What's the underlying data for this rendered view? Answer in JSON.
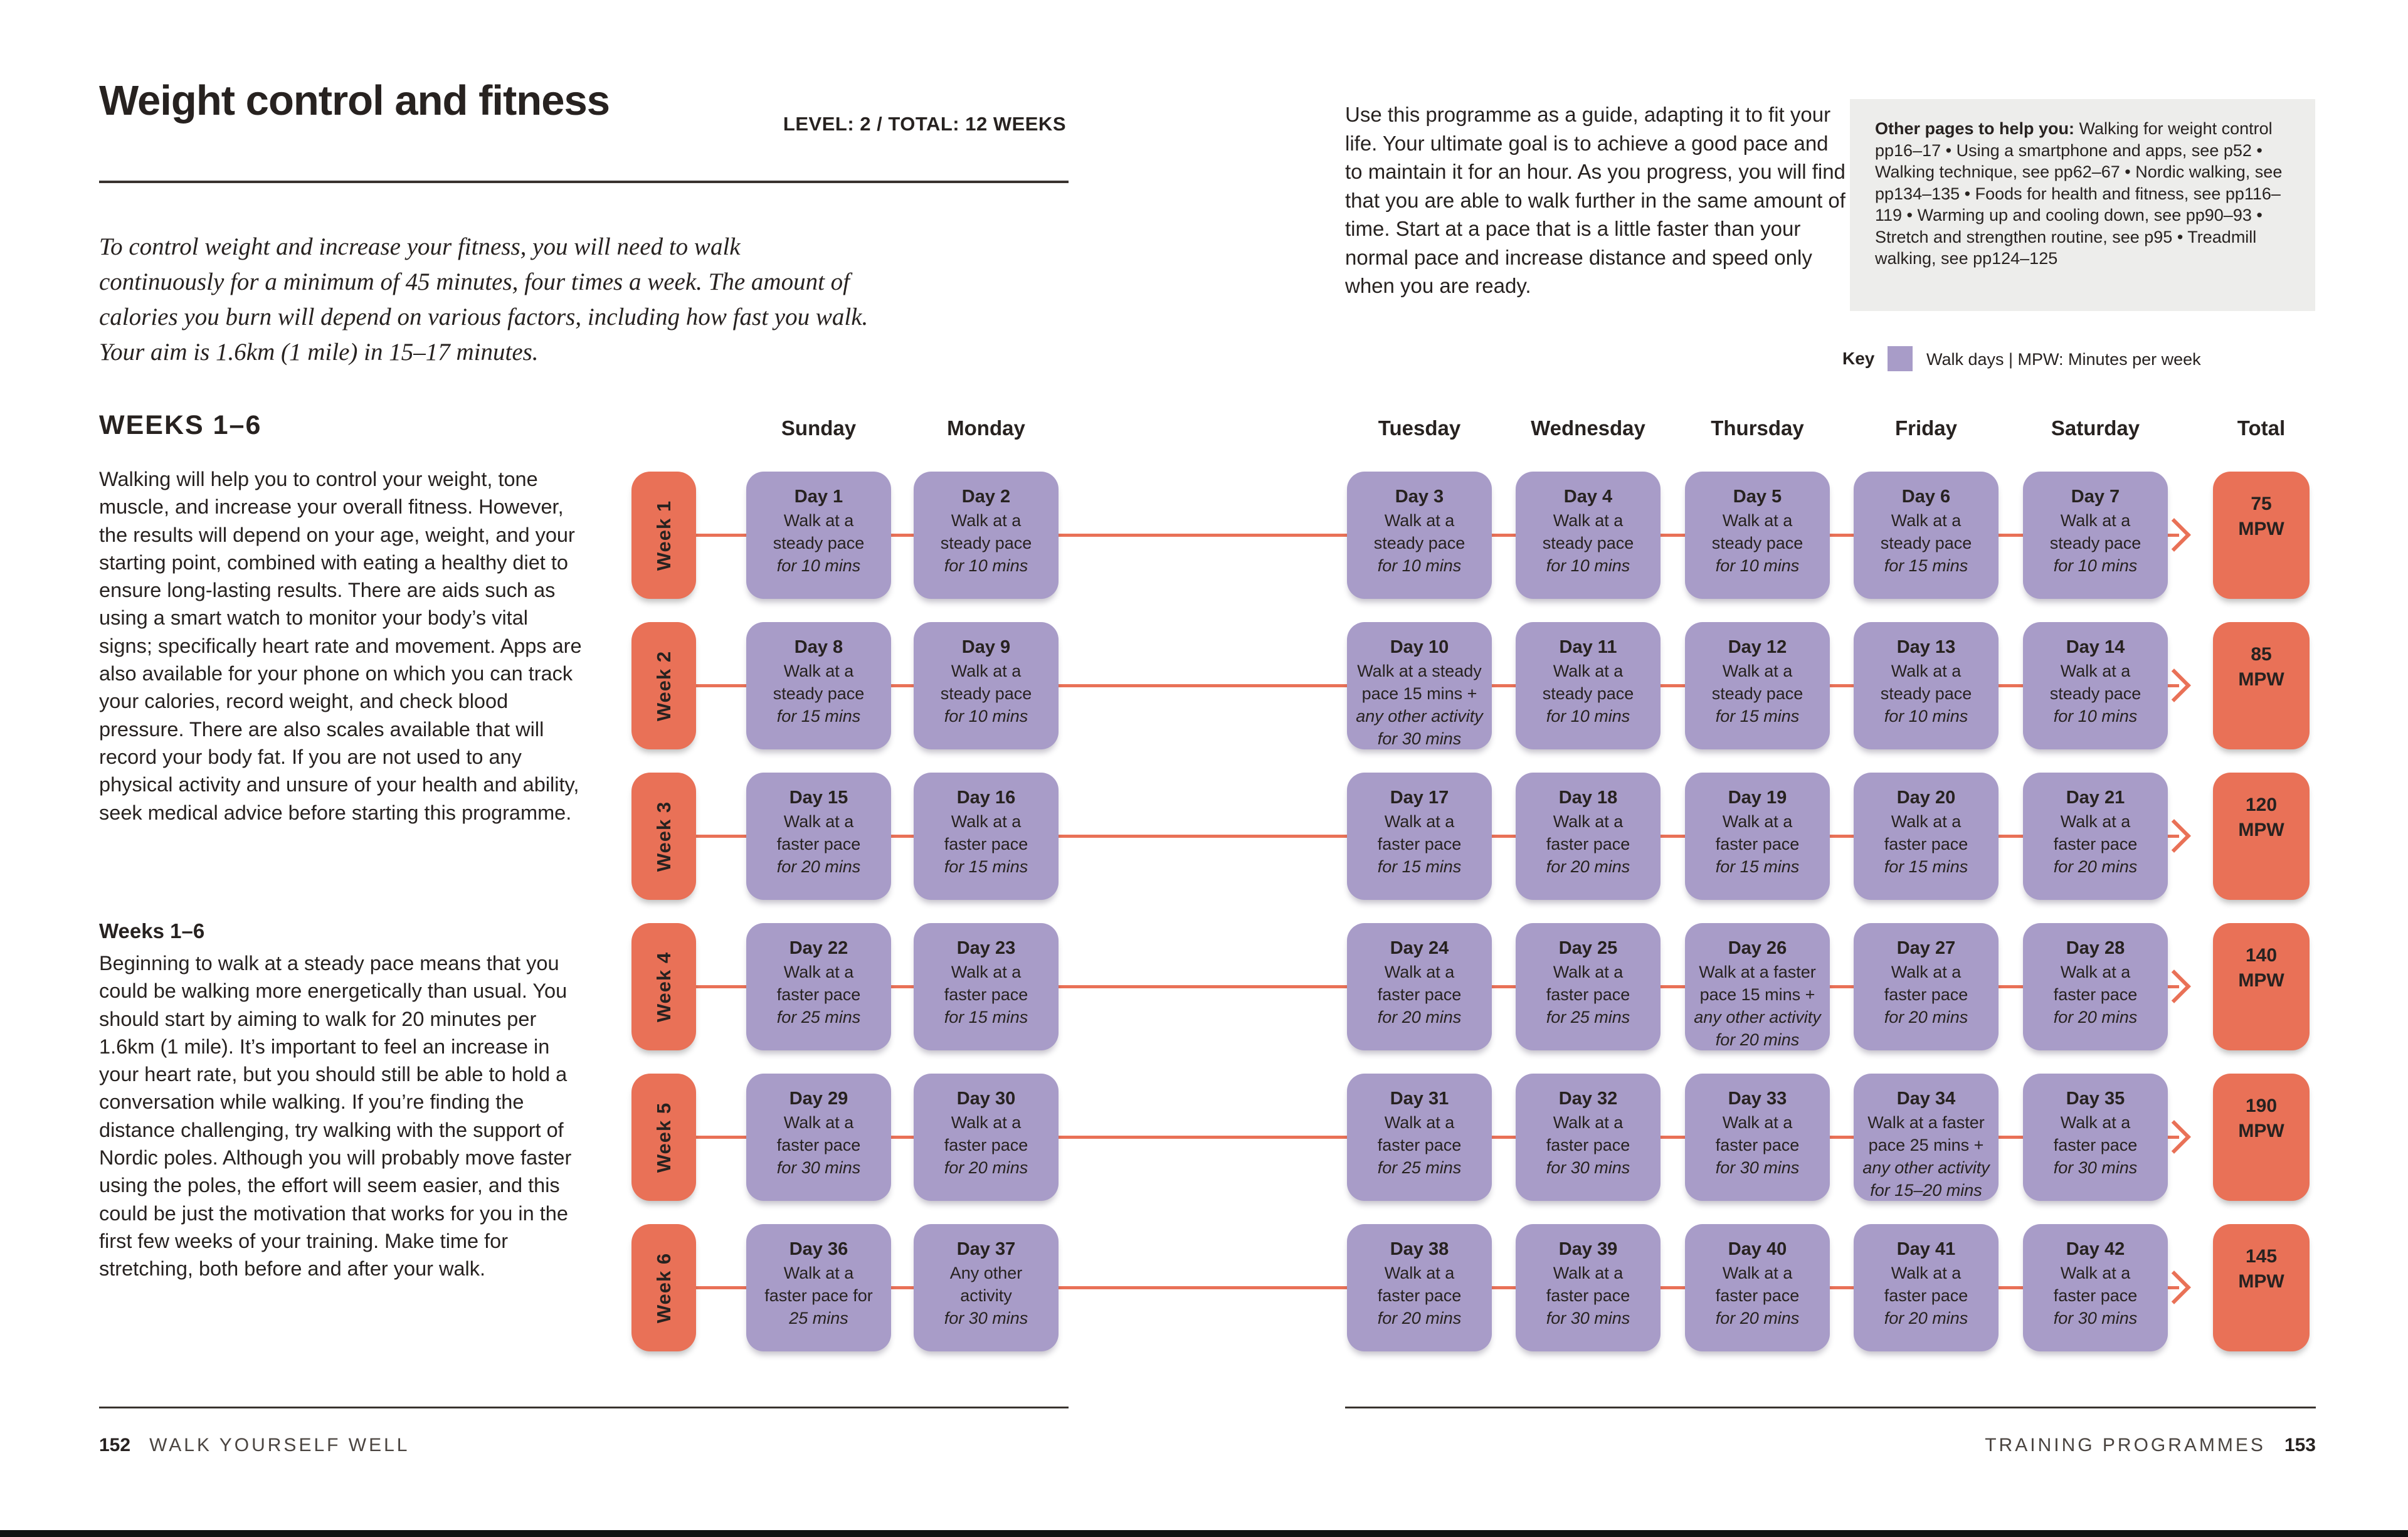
{
  "page": {
    "title": "Weight control and fitness",
    "meta": "LEVEL: 2  /  TOTAL: 12 WEEKS",
    "intro": "To control weight and increase your fitness, you will need to walk continuously for a minimum of 45 minutes, four times a week. The amount of calories you burn will depend on various factors, including how fast you walk. Your aim is 1.6km (1 mile) in 15–17 minutes.",
    "guide_paragraph": "Use this programme as a guide, adapting it to fit your life. Your ultimate goal is to achieve a good pace and to maintain it for an hour. As you progress, you will find that you are able to walk further in the same amount of time. Start at a pace that is a little faster than your normal pace and increase distance and speed only when you are ready.",
    "help_box": {
      "lead": "Other pages to help you:",
      "text": " Walking for weight control pp16–17 • Using a smartphone and apps, see p52 • Walking technique, see pp62–67 • Nordic walking, see pp134–135 • Foods for health and fitness, see pp116–119 • Warming up and cooling down, see pp90–93 • Stretch and strengthen routine, see p95 • Treadmill walking, see pp124–125"
    },
    "key": {
      "label": "Key",
      "swatch_color": "#a89cc8",
      "text": "Walk days  |  MPW: Minutes per week"
    },
    "section": {
      "heading": "WEEKS 1–6",
      "paragraph1": "Walking will help you to control your weight, tone muscle, and increase your overall fitness. However, the results will depend on your age, weight, and your starting point, combined with eating a healthy diet to ensure long-lasting results. There are aids such as using a smart watch to monitor your body’s vital signs; specifically heart rate and movement. Apps are also available for your phone on which you can track your calories, record weight, and check blood pressure. There are also scales available that will record your body fat. If you are not used to any physical activity and unsure of your health and ability, seek medical advice before starting this programme.",
      "subheading": "Weeks 1–6",
      "paragraph2": "Beginning to walk at a steady pace means that you could be walking more energetically than usual. You should start by aiming to walk for 20 minutes per 1.6km (1 mile). It’s important to feel an increase in your heart rate, but you should still be able to hold a conversation while walking. If you’re finding the distance challenging, try walking with the support of Nordic poles. Although you will probably move faster using the poles, the effort will seem easier, and this could be just the motivation that works for you in the first few weeks of your training. Make time for stretching, both before and after your walk."
    },
    "footer": {
      "left_page_number": "152",
      "left_title": "WALK YOURSELF WELL",
      "right_title": "TRAINING PROGRAMMES",
      "right_page_number": "153"
    }
  },
  "colors": {
    "accent_orange": "#e97157",
    "walk_purple": "#a89cc8",
    "box_gray": "#ededeb",
    "text": "#272220"
  },
  "table": {
    "day_headers": [
      "Sunday",
      "Monday",
      "Tuesday",
      "Wednesday",
      "Thursday",
      "Friday",
      "Saturday"
    ],
    "total_header": "Total",
    "weeks": [
      {
        "label": "Week 1",
        "total_value": "75",
        "total_unit": "MPW",
        "days": [
          {
            "title": "Day 1",
            "lines": [
              "Walk at a",
              "steady pace"
            ],
            "italic_lines": [
              "for 10 mins"
            ]
          },
          {
            "title": "Day 2",
            "lines": [
              "Walk at a",
              "steady pace"
            ],
            "italic_lines": [
              "for 10 mins"
            ]
          },
          {
            "title": "Day 3",
            "lines": [
              "Walk at a",
              "steady pace"
            ],
            "italic_lines": [
              "for 10 mins"
            ]
          },
          {
            "title": "Day 4",
            "lines": [
              "Walk at a",
              "steady pace"
            ],
            "italic_lines": [
              "for 10 mins"
            ]
          },
          {
            "title": "Day 5",
            "lines": [
              "Walk at a",
              "steady pace"
            ],
            "italic_lines": [
              "for 10 mins"
            ]
          },
          {
            "title": "Day 6",
            "lines": [
              "Walk at a",
              "steady pace"
            ],
            "italic_lines": [
              "for 15 mins"
            ]
          },
          {
            "title": "Day 7",
            "lines": [
              "Walk at a",
              "steady pace"
            ],
            "italic_lines": [
              "for 10 mins"
            ]
          }
        ]
      },
      {
        "label": "Week 2",
        "total_value": "85",
        "total_unit": "MPW",
        "days": [
          {
            "title": "Day 8",
            "lines": [
              "Walk at a",
              "steady pace"
            ],
            "italic_lines": [
              "for 15 mins"
            ]
          },
          {
            "title": "Day 9",
            "lines": [
              "Walk at a",
              "steady pace"
            ],
            "italic_lines": [
              "for 10 mins"
            ]
          },
          {
            "title": "Day 10",
            "lines": [
              "Walk at a steady",
              "pace 15 mins +"
            ],
            "italic_lines": [
              "any other activity",
              "for 30 mins"
            ]
          },
          {
            "title": "Day 11",
            "lines": [
              "Walk at a",
              "steady pace"
            ],
            "italic_lines": [
              "for 10 mins"
            ]
          },
          {
            "title": "Day 12",
            "lines": [
              "Walk at a",
              "steady pace"
            ],
            "italic_lines": [
              "for 15 mins"
            ]
          },
          {
            "title": "Day 13",
            "lines": [
              "Walk at a",
              "steady pace"
            ],
            "italic_lines": [
              "for 10 mins"
            ]
          },
          {
            "title": "Day 14",
            "lines": [
              "Walk at a",
              "steady pace"
            ],
            "italic_lines": [
              "for 10 mins"
            ]
          }
        ]
      },
      {
        "label": "Week 3",
        "total_value": "120",
        "total_unit": "MPW",
        "days": [
          {
            "title": "Day 15",
            "lines": [
              "Walk at a",
              "faster pace"
            ],
            "italic_lines": [
              "for 20 mins"
            ]
          },
          {
            "title": "Day 16",
            "lines": [
              "Walk at a",
              "faster pace"
            ],
            "italic_lines": [
              "for 15 mins"
            ]
          },
          {
            "title": "Day 17",
            "lines": [
              "Walk at a",
              "faster pace"
            ],
            "italic_lines": [
              "for 15 mins"
            ]
          },
          {
            "title": "Day 18",
            "lines": [
              "Walk at a",
              "faster pace"
            ],
            "italic_lines": [
              "for 20 mins"
            ]
          },
          {
            "title": "Day 19",
            "lines": [
              "Walk at a",
              "faster pace"
            ],
            "italic_lines": [
              "for 15 mins"
            ]
          },
          {
            "title": "Day 20",
            "lines": [
              "Walk at a",
              "faster pace"
            ],
            "italic_lines": [
              "for 15 mins"
            ]
          },
          {
            "title": "Day 21",
            "lines": [
              "Walk at a",
              "faster pace"
            ],
            "italic_lines": [
              "for 20 mins"
            ]
          }
        ]
      },
      {
        "label": "Week 4",
        "total_value": "140",
        "total_unit": "MPW",
        "days": [
          {
            "title": "Day 22",
            "lines": [
              "Walk at a",
              "faster pace"
            ],
            "italic_lines": [
              "for 25 mins"
            ]
          },
          {
            "title": "Day 23",
            "lines": [
              "Walk at a",
              "faster pace"
            ],
            "italic_lines": [
              "for 15 mins"
            ]
          },
          {
            "title": "Day 24",
            "lines": [
              "Walk at a",
              "faster pace"
            ],
            "italic_lines": [
              "for 20 mins"
            ]
          },
          {
            "title": "Day 25",
            "lines": [
              "Walk at a",
              "faster pace"
            ],
            "italic_lines": [
              "for 25 mins"
            ]
          },
          {
            "title": "Day 26",
            "lines": [
              "Walk at a faster",
              "pace 15 mins +"
            ],
            "italic_lines": [
              "any other activity",
              "for 20 mins"
            ]
          },
          {
            "title": "Day 27",
            "lines": [
              "Walk at a",
              "faster pace"
            ],
            "italic_lines": [
              "for 20 mins"
            ]
          },
          {
            "title": "Day 28",
            "lines": [
              "Walk at a",
              "faster pace"
            ],
            "italic_lines": [
              "for 20 mins"
            ]
          }
        ]
      },
      {
        "label": "Week 5",
        "total_value": "190",
        "total_unit": "MPW",
        "days": [
          {
            "title": "Day 29",
            "lines": [
              "Walk at a",
              "faster pace"
            ],
            "italic_lines": [
              "for 30 mins"
            ]
          },
          {
            "title": "Day 30",
            "lines": [
              "Walk at a",
              "faster pace"
            ],
            "italic_lines": [
              "for 20 mins"
            ]
          },
          {
            "title": "Day 31",
            "lines": [
              "Walk at a",
              "faster pace"
            ],
            "italic_lines": [
              "for 25 mins"
            ]
          },
          {
            "title": "Day 32",
            "lines": [
              "Walk at a",
              "faster pace"
            ],
            "italic_lines": [
              "for 30 mins"
            ]
          },
          {
            "title": "Day 33",
            "lines": [
              "Walk at a",
              "faster pace"
            ],
            "italic_lines": [
              "for 30 mins"
            ]
          },
          {
            "title": "Day 34",
            "lines": [
              "Walk at a faster",
              "pace 25 mins +"
            ],
            "italic_lines": [
              "any other activity",
              "for 15–20 mins"
            ]
          },
          {
            "title": "Day 35",
            "lines": [
              "Walk at a",
              "faster pace"
            ],
            "italic_lines": [
              "for 30 mins"
            ]
          }
        ]
      },
      {
        "label": "Week 6",
        "total_value": "145",
        "total_unit": "MPW",
        "days": [
          {
            "title": "Day 36",
            "lines": [
              "Walk at a",
              "faster pace for"
            ],
            "italic_lines": [
              "25 mins"
            ]
          },
          {
            "title": "Day 37",
            "lines": [
              "Any other",
              "activity"
            ],
            "italic_lines": [
              "for 30 mins"
            ]
          },
          {
            "title": "Day 38",
            "lines": [
              "Walk at a",
              "faster pace"
            ],
            "italic_lines": [
              "for 20 mins"
            ]
          },
          {
            "title": "Day 39",
            "lines": [
              "Walk at a",
              "faster pace"
            ],
            "italic_lines": [
              "for 30 mins"
            ]
          },
          {
            "title": "Day 40",
            "lines": [
              "Walk at a",
              "faster pace"
            ],
            "italic_lines": [
              "for 20 mins"
            ]
          },
          {
            "title": "Day 41",
            "lines": [
              "Walk at a",
              "faster pace"
            ],
            "italic_lines": [
              "for 20 mins"
            ]
          },
          {
            "title": "Day 42",
            "lines": [
              "Walk at a",
              "faster pace"
            ],
            "italic_lines": [
              "for 30 mins"
            ]
          }
        ]
      }
    ]
  }
}
